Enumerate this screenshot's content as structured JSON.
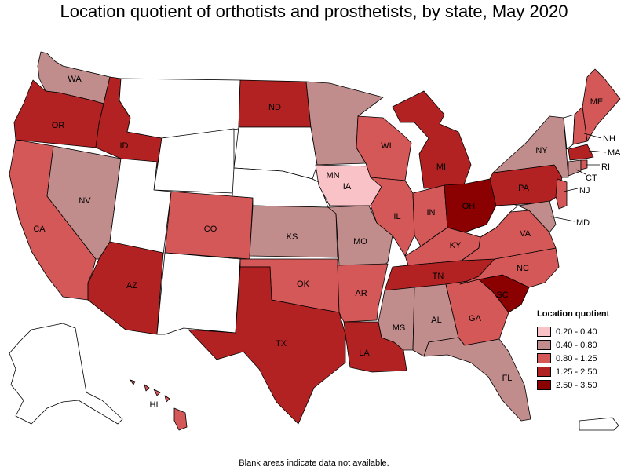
{
  "title": "Location quotient of orthotists and prosthetists, by state, May 2020",
  "footnote": "Blank areas indicate data not available.",
  "legend": {
    "title": "Location quotient",
    "items": [
      {
        "label": "0.20 - 0.40",
        "color": "#f9c2c7"
      },
      {
        "label": "0.40 - 0.80",
        "color": "#c08c8c"
      },
      {
        "label": "0.80 - 1.25",
        "color": "#d45858"
      },
      {
        "label": "1.25 - 2.50",
        "color": "#b22222"
      },
      {
        "label": "2.50 - 3.50",
        "color": "#8b0000"
      }
    ]
  },
  "states": {
    "WA": "WA",
    "OR": "OR",
    "CA": "CA",
    "ID": "ID",
    "NV": "NV",
    "AZ": "AZ",
    "CO": "CO",
    "ND": "ND",
    "MN": "MN",
    "IA": "IA",
    "KS": "KS",
    "OK": "OK",
    "TX": "TX",
    "MO": "MO",
    "AR": "AR",
    "LA": "LA",
    "WI": "WI",
    "IL": "IL",
    "MI": "MI",
    "IN": "IN",
    "OH": "OH",
    "KY": "KY",
    "TN": "TN",
    "MS": "MS",
    "AL": "AL",
    "GA": "GA",
    "FL": "FL",
    "SC": "SC",
    "NC": "NC",
    "VA": "VA",
    "PA": "PA",
    "NY": "NY",
    "ME": "ME",
    "HI": "HI",
    "NH": "NH",
    "MA": "MA",
    "RI": "RI",
    "CT": "CT",
    "NJ": "NJ",
    "MD": "MD"
  }
}
